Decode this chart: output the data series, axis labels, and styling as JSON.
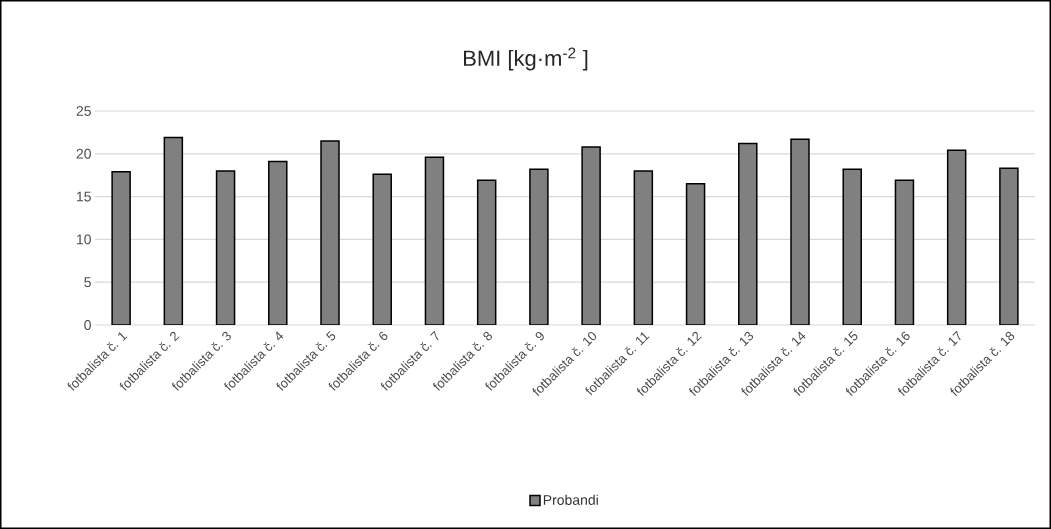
{
  "chart_data": {
    "type": "bar",
    "title": "BMI [kg·m$^{-2}$ ]",
    "categories": [
      "fotbalista č. 1",
      "fotbalista č. 2",
      "fotbalista č. 3",
      "fotbalista č. 4",
      "fotbalista č. 5",
      "fotbalista č. 6",
      "fotbalista č. 7",
      "fotbalista č. 8",
      "fotbalista č. 9",
      "fotbalista č. 10",
      "fotbalista č. 11",
      "fotbalista č. 12",
      "fotbalista č. 13",
      "fotbalista č. 14",
      "fotbalista č. 15",
      "fotbalista č. 16",
      "fotbalista č. 17",
      "fotbalista č. 18"
    ],
    "series": [
      {
        "name": "Probandi",
        "color": "#808080",
        "values": [
          17.9,
          21.9,
          18.0,
          19.1,
          21.5,
          17.6,
          19.6,
          16.9,
          18.2,
          20.8,
          18.0,
          16.5,
          21.2,
          21.7,
          18.2,
          16.9,
          20.4,
          18.3
        ]
      }
    ],
    "ylim": [
      0,
      25
    ],
    "yticks": [
      0,
      5,
      10,
      15,
      20,
      25
    ],
    "grid": "y",
    "legend": "bottom"
  }
}
